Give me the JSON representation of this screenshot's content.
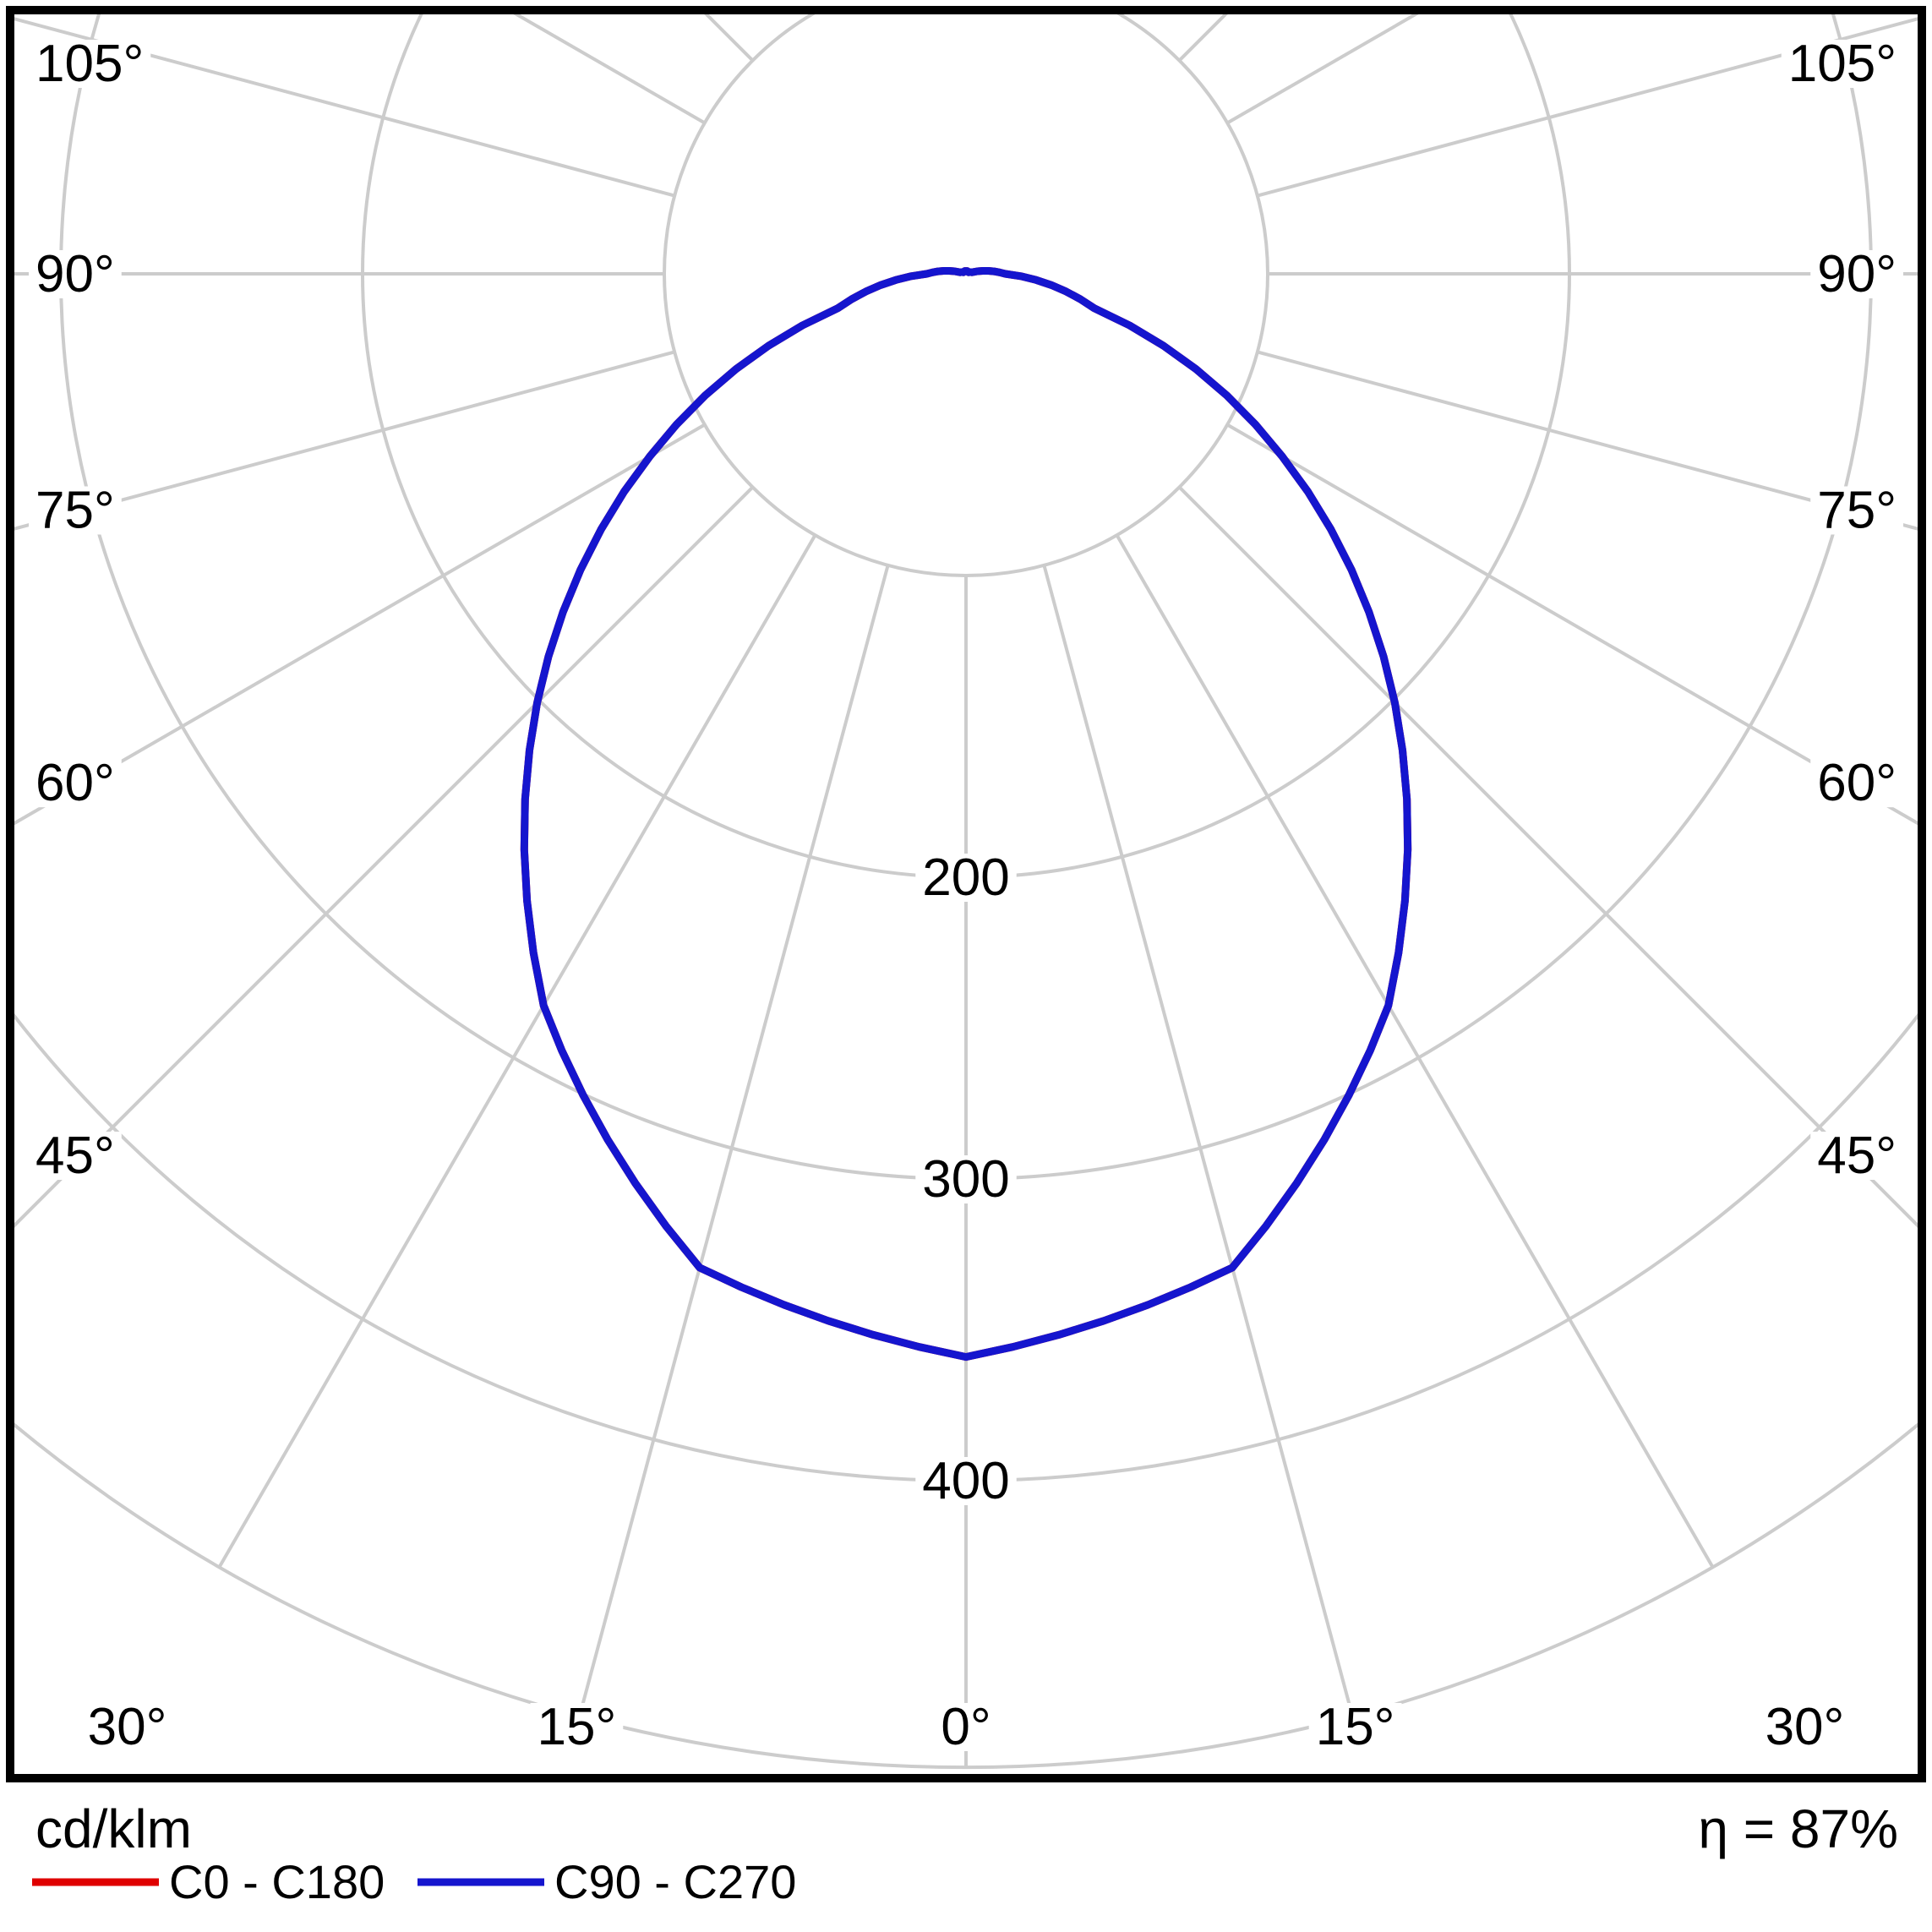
{
  "title_unit": "cd/klm",
  "efficiency": "η = 87%",
  "legend": [
    {
      "label": "C0 - C180",
      "color": "#DF0000"
    },
    {
      "label": "C90 - C270",
      "color": "#1515CE"
    }
  ],
  "chart_data": {
    "type": "polar-photometric",
    "unit": "cd/klm",
    "efficiency_percent": 87,
    "grid_color": "#CCCCCC",
    "frame_color": "#000000",
    "gamma_deg": [
      0,
      15,
      30,
      45,
      60,
      75,
      90,
      105,
      120,
      135,
      150,
      165,
      180
    ],
    "series": [
      {
        "name": "C0 - C180",
        "color": "#DF0000",
        "values": [
          359,
          341,
          280,
          201,
          121,
          44,
          13,
          2,
          1,
          1,
          1,
          1,
          0
        ]
      },
      {
        "name": "C90 - C270",
        "color": "#1515CE",
        "values": [
          359,
          341,
          280,
          201,
          121,
          44,
          13,
          2,
          1,
          1,
          1,
          1,
          0
        ]
      }
    ],
    "ring_values": [
      100,
      200,
      300,
      400
    ],
    "ring_labels": [
      "200",
      "300",
      "400"
    ],
    "angle_labels_bottom": [
      "0°",
      "15°",
      "30°"
    ],
    "angle_labels_side": [
      "45°",
      "60°",
      "75°",
      "90°",
      "105°"
    ],
    "spoke_angles_deg": [
      0,
      15,
      30,
      45,
      60,
      75,
      90,
      105,
      120,
      135
    ],
    "inner_ring_value": 100,
    "boundary_value": 495,
    "rlim": [
      0,
      495
    ]
  }
}
